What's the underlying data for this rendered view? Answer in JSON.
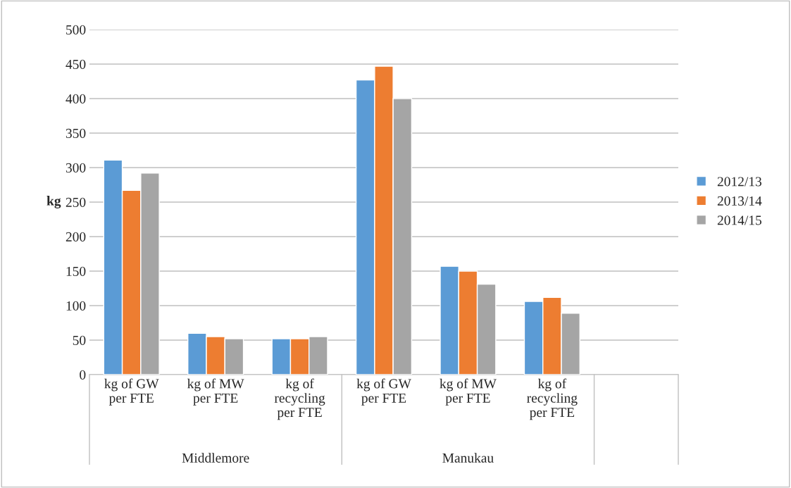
{
  "chart_data": {
    "type": "bar",
    "categories": [
      "kg of GW\nper FTE",
      "kg of MW\nper FTE",
      "kg of\nrecycling\nper FTE",
      "kg of GW\nper FTE",
      "kg of MW\nper FTE",
      "kg of\nrecycling\nper FTE",
      null
    ],
    "series": [
      {
        "name": "2012/13",
        "color": "#5b9bd5",
        "values": [
          311,
          60,
          52,
          427,
          157,
          106,
          null
        ]
      },
      {
        "name": "2013/14",
        "color": "#ed7d31",
        "values": [
          267,
          55,
          52,
          447,
          150,
          112,
          null
        ]
      },
      {
        "name": "2014/15",
        "color": "#a5a5a5",
        "values": [
          292,
          52,
          55,
          400,
          131,
          89,
          null
        ]
      }
    ],
    "ylabel": "kg",
    "annotations": [
      "Middlemore",
      "Manukau"
    ],
    "ylim": [
      0,
      500
    ],
    "yticks": [
      0,
      50,
      100,
      150,
      200,
      250,
      300,
      350,
      400,
      450,
      500
    ],
    "grid": "y",
    "legend": "right"
  }
}
